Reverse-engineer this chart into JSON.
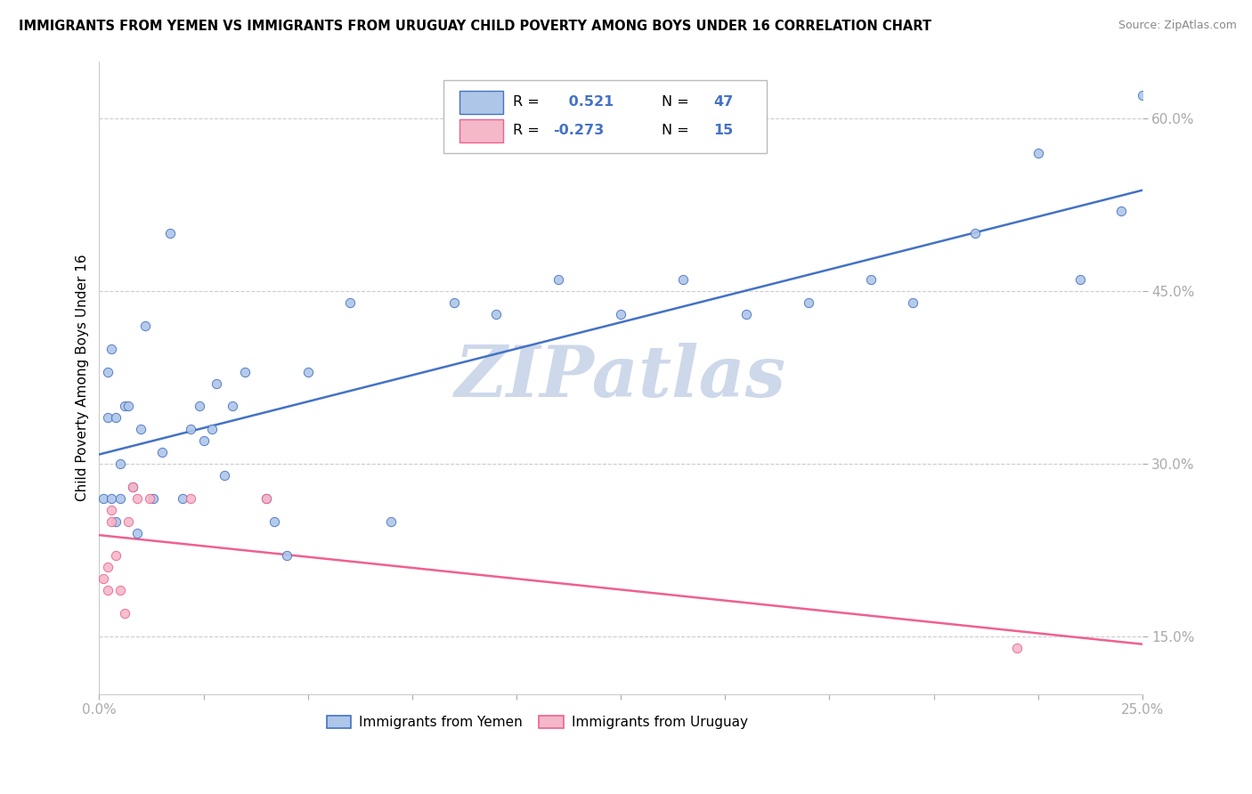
{
  "title": "IMMIGRANTS FROM YEMEN VS IMMIGRANTS FROM URUGUAY CHILD POVERTY AMONG BOYS UNDER 16 CORRELATION CHART",
  "source": "Source: ZipAtlas.com",
  "ylabel": "Child Poverty Among Boys Under 16",
  "xlim": [
    0.0,
    0.25
  ],
  "ylim": [
    0.1,
    0.65
  ],
  "ytick_vals": [
    0.15,
    0.3,
    0.45,
    0.6
  ],
  "ytick_labels": [
    "15.0%",
    "30.0%",
    "45.0%",
    "60.0%"
  ],
  "xtick_vals": [
    0.0,
    0.025,
    0.05,
    0.075,
    0.1,
    0.125,
    0.15,
    0.175,
    0.2,
    0.225,
    0.25
  ],
  "yemen_color": "#aec6e8",
  "uruguay_color": "#f4b8c8",
  "trend_yemen_color": "#4472c4",
  "trend_uruguay_color": "#f06090",
  "watermark": "ZIPatlas",
  "watermark_color": "#cdd8ea",
  "background_color": "#ffffff",
  "yemen_x": [
    0.001,
    0.002,
    0.002,
    0.003,
    0.003,
    0.004,
    0.004,
    0.005,
    0.005,
    0.006,
    0.007,
    0.008,
    0.009,
    0.01,
    0.011,
    0.013,
    0.015,
    0.017,
    0.02,
    0.022,
    0.024,
    0.025,
    0.027,
    0.028,
    0.03,
    0.032,
    0.035,
    0.04,
    0.042,
    0.045,
    0.05,
    0.06,
    0.07,
    0.085,
    0.095,
    0.11,
    0.125,
    0.14,
    0.155,
    0.17,
    0.185,
    0.195,
    0.21,
    0.225,
    0.235,
    0.245,
    0.25
  ],
  "yemen_y": [
    0.27,
    0.34,
    0.38,
    0.27,
    0.4,
    0.25,
    0.34,
    0.27,
    0.3,
    0.35,
    0.35,
    0.28,
    0.24,
    0.33,
    0.42,
    0.27,
    0.31,
    0.5,
    0.27,
    0.33,
    0.35,
    0.32,
    0.33,
    0.37,
    0.29,
    0.35,
    0.38,
    0.27,
    0.25,
    0.22,
    0.38,
    0.44,
    0.25,
    0.44,
    0.43,
    0.46,
    0.43,
    0.46,
    0.43,
    0.44,
    0.46,
    0.44,
    0.5,
    0.57,
    0.46,
    0.52,
    0.62
  ],
  "uruguay_x": [
    0.001,
    0.002,
    0.002,
    0.003,
    0.003,
    0.004,
    0.005,
    0.006,
    0.007,
    0.008,
    0.009,
    0.012,
    0.022,
    0.04,
    0.22
  ],
  "uruguay_y": [
    0.2,
    0.21,
    0.19,
    0.25,
    0.26,
    0.22,
    0.19,
    0.17,
    0.25,
    0.28,
    0.27,
    0.27,
    0.27,
    0.27,
    0.14
  ]
}
